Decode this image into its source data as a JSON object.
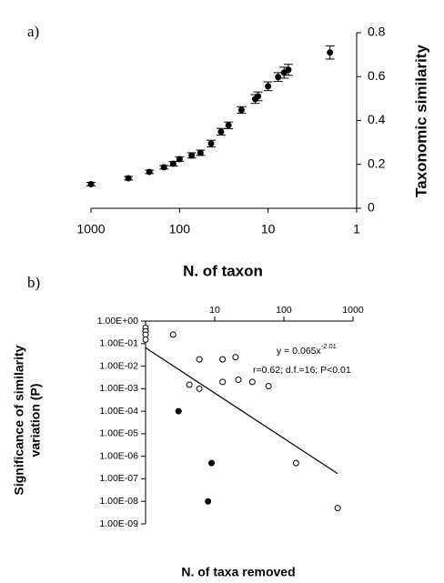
{
  "chart_data": [
    {
      "type": "scatter",
      "panel_label": "a)",
      "xlabel": "N. of taxon",
      "ylabel": "Taxonomic similarity",
      "log_x": true,
      "xlim": [
        1000,
        1
      ],
      "xticks": [
        1000,
        100,
        10,
        1
      ],
      "ylim": [
        0,
        0.8
      ],
      "yticks": [
        0,
        0.2,
        0.4,
        0.6,
        0.8
      ],
      "y_axis_side": "right",
      "x_axis_side": "bottom",
      "series": [
        {
          "color": "#000000",
          "marker": "filled",
          "x": [
            1000,
            378,
            219,
            150,
            118,
            100,
            73,
            58,
            44,
            34,
            28,
            20,
            14,
            13,
            10,
            7.7,
            6.6,
            5.9,
            2
          ],
          "values": [
            0.11,
            0.137,
            0.166,
            0.187,
            0.203,
            0.224,
            0.241,
            0.253,
            0.295,
            0.349,
            0.378,
            0.448,
            0.498,
            0.51,
            0.556,
            0.598,
            0.618,
            0.631,
            0.71
          ],
          "errors": [
            0.008,
            0.008,
            0.008,
            0.008,
            0.01,
            0.01,
            0.012,
            0.012,
            0.015,
            0.015,
            0.015,
            0.015,
            0.02,
            0.02,
            0.02,
            0.02,
            0.025,
            0.025,
            0.03
          ]
        }
      ]
    },
    {
      "type": "scatter",
      "panel_label": "b)",
      "xlabel": "N. of taxa removed",
      "ylabel": [
        "Significance of similarity",
        "variation (P)"
      ],
      "log_x": true,
      "log_y": true,
      "xlim": [
        1,
        1000
      ],
      "xticks": [
        10,
        100,
        1000
      ],
      "ylim": [
        1e-09,
        1
      ],
      "yticks": [
        {
          "value": 1,
          "label": "1.00E+00"
        },
        {
          "value": 0.1,
          "label": "1.00E-01"
        },
        {
          "value": 0.01,
          "label": "1.00E-02"
        },
        {
          "value": 0.001,
          "label": "1.00E-03"
        },
        {
          "value": 0.0001,
          "label": "1.00E-04"
        },
        {
          "value": 1e-05,
          "label": "1.00E-05"
        },
        {
          "value": 1e-06,
          "label": "1.00E-06"
        },
        {
          "value": 1e-07,
          "label": "1.00E-07"
        },
        {
          "value": 1e-08,
          "label": "1.00E-08"
        },
        {
          "value": 1e-09,
          "label": "1.00E-09"
        }
      ],
      "y_axis_side": "left",
      "x_axis_side": "top",
      "equation": "y = 0.065x",
      "equation_exponent": "-2.01",
      "stats": "r=0.62; d.f.=16; P<0.01",
      "series": [
        {
          "color": "#000000",
          "marker": "open",
          "x": [
            1,
            1,
            1,
            1,
            2.5,
            6,
            4.3,
            6,
            13,
            13,
            20,
            22,
            35,
            60,
            150,
            600
          ],
          "values": [
            0.5,
            0.35,
            0.25,
            0.15,
            0.25,
            0.02,
            0.0015,
            0.001,
            0.02,
            0.002,
            0.025,
            0.0025,
            0.002,
            0.0013,
            5e-07,
            5e-09
          ]
        },
        {
          "color": "#000000",
          "marker": "filled",
          "x": [
            3,
            9,
            8
          ],
          "values": [
            0.0001,
            5e-07,
            1e-08
          ]
        },
        {
          "color": "#000000",
          "marker": "line",
          "x": [
            1,
            600
          ],
          "values": [
            0.065,
            1.7e-07
          ]
        }
      ]
    }
  ]
}
